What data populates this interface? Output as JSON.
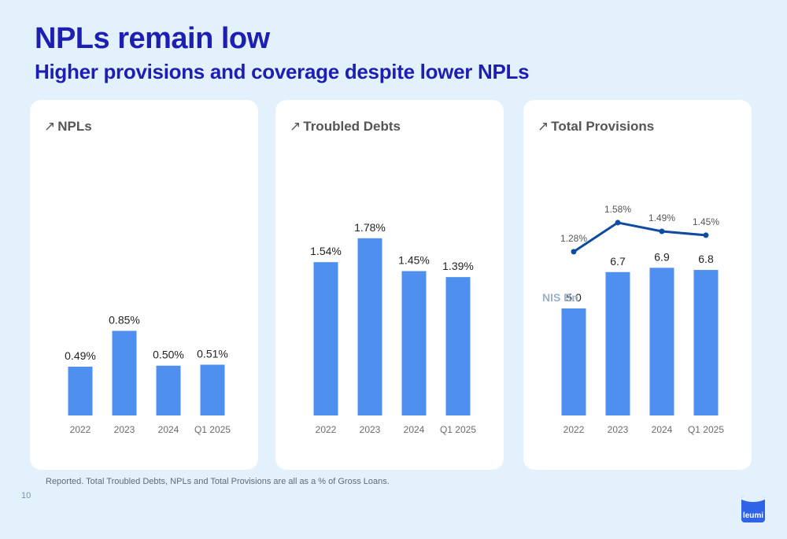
{
  "header": {
    "title": "NPLs remain low",
    "subtitle": "Higher provisions and coverage despite lower NPLs"
  },
  "footnote": "Reported. Total Troubled Debts, NPLs and Total Provisions are all as a % of Gross Loans.",
  "page_number": "10",
  "logo": {
    "text": "leumi"
  },
  "colors": {
    "bar": "#4f8ff0",
    "line": "#0f4ca0",
    "title": "#1d1fb3",
    "background": "#e3f1fc"
  },
  "chart_data": [
    {
      "type": "bar",
      "title": "NPLs",
      "title_icon": "trend-arrow-icon",
      "categories": [
        "2022",
        "2023",
        "2024",
        "Q1 2025"
      ],
      "values": [
        0.49,
        0.85,
        0.5,
        0.51
      ],
      "value_labels": [
        "0.49%",
        "0.85%",
        "0.50%",
        "0.51%"
      ],
      "ylim": [
        0,
        2.3
      ],
      "grid": false
    },
    {
      "type": "bar",
      "title": "Troubled Debts",
      "title_icon": "trend-arrow-icon",
      "categories": [
        "2022",
        "2023",
        "2024",
        "Q1 2025"
      ],
      "values": [
        1.54,
        1.78,
        1.45,
        1.39
      ],
      "value_labels": [
        "1.54%",
        "1.78%",
        "1.45%",
        "1.39%"
      ],
      "ylim": [
        0,
        2.3
      ],
      "grid": false
    },
    {
      "type": "bar",
      "title": "Total Provisions",
      "title_icon": "trend-arrow-icon",
      "unit_label": "NIS Bn",
      "categories": [
        "2022",
        "2023",
        "2024",
        "Q1 2025"
      ],
      "values": [
        5.0,
        6.7,
        6.9,
        6.8
      ],
      "value_labels": [
        "5.0",
        "6.7",
        "6.9",
        "6.8"
      ],
      "ylim": [
        0,
        10.7
      ],
      "grid": false,
      "line_series": {
        "values": [
          1.28,
          1.58,
          1.49,
          1.45
        ],
        "value_labels": [
          "1.28%",
          "1.58%",
          "1.49%",
          "1.45%"
        ],
        "ylim": [
          1.1,
          1.75
        ]
      }
    }
  ]
}
